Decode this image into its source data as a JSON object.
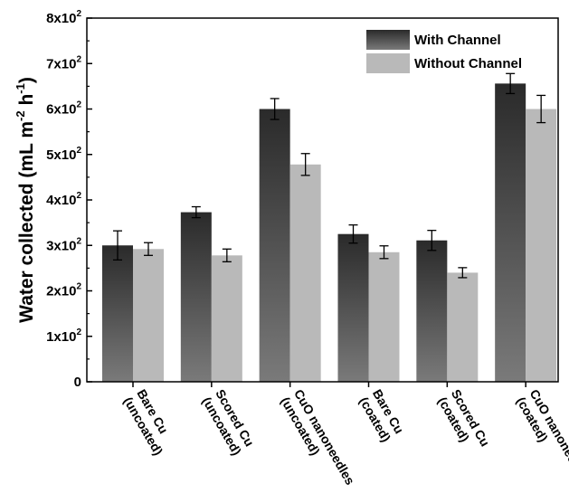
{
  "chart_data": {
    "type": "bar",
    "categories": [
      [
        "Bare Cu",
        "(uncoated)"
      ],
      [
        "Scored Cu",
        "(uncoated)"
      ],
      [
        "CuO nanoneedles",
        "(uncoated)"
      ],
      [
        "Bare Cu",
        "(coated)"
      ],
      [
        "Scored Cu",
        "(coated)"
      ],
      [
        "CuO nanoneedles",
        "(coated)"
      ]
    ],
    "series": [
      {
        "name": "With Channel",
        "values": [
          300,
          373,
          600,
          325,
          311,
          656
        ],
        "errors": [
          32,
          12,
          23,
          20,
          22,
          22
        ],
        "color_top": "#2a2a2a",
        "color_bottom": "#7a7a7a"
      },
      {
        "name": "Without Channel",
        "values": [
          292,
          278,
          478,
          285,
          240,
          600
        ],
        "errors": [
          14,
          14,
          24,
          14,
          11,
          30
        ],
        "color": "#b9b9b9"
      }
    ],
    "ylabel": "Water collected (mL m-2 h-1)",
    "ylabel_parts": [
      {
        "text": "Water collected (mL m",
        "sup": false
      },
      {
        "text": "-2",
        "sup": true
      },
      {
        "text": " h",
        "sup": false
      },
      {
        "text": "-1",
        "sup": true
      },
      {
        "text": ")",
        "sup": false
      }
    ],
    "ylim": [
      0,
      800
    ],
    "yticks": [
      {
        "value": 0,
        "base": "0",
        "sup": ""
      },
      {
        "value": 100,
        "base": "1x10",
        "sup": "2"
      },
      {
        "value": 200,
        "base": "2x10",
        "sup": "2"
      },
      {
        "value": 300,
        "base": "3x10",
        "sup": "2"
      },
      {
        "value": 400,
        "base": "4x10",
        "sup": "2"
      },
      {
        "value": 500,
        "base": "5x10",
        "sup": "2"
      },
      {
        "value": 600,
        "base": "6x10",
        "sup": "2"
      },
      {
        "value": 700,
        "base": "7x10",
        "sup": "2"
      },
      {
        "value": 800,
        "base": "8x10",
        "sup": "2"
      }
    ],
    "legend_position": "top-right",
    "grid": false
  }
}
